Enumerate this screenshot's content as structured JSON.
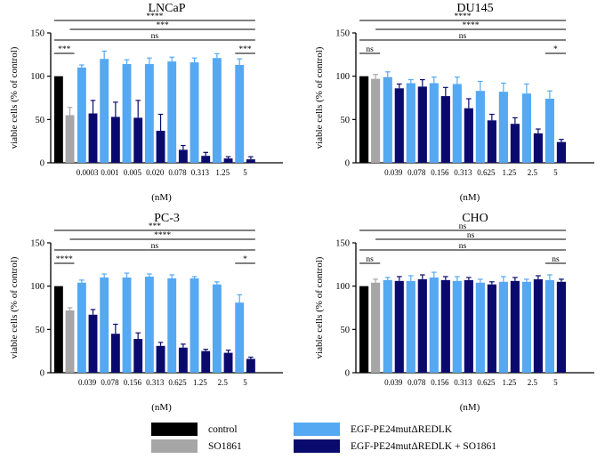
{
  "chart_data": [
    {
      "type": "bar",
      "title": "LNCaP",
      "ylabel": "viable cells (% of control)",
      "xlabel": "(nM)",
      "ylim": [
        0,
        150
      ],
      "yticks": [
        0,
        50,
        100,
        150
      ],
      "conc_labels": [
        "0.0003",
        "0.001",
        "0.005",
        "0.020",
        "0.078",
        "0.313",
        "1.25",
        "5"
      ],
      "control": {
        "value": 100,
        "err": 0
      },
      "so1861": {
        "value": 55,
        "err": 9
      },
      "egf": [
        {
          "value": 110,
          "err": 3
        },
        {
          "value": 120,
          "err": 9
        },
        {
          "value": 114,
          "err": 5
        },
        {
          "value": 114,
          "err": 7
        },
        {
          "value": 117,
          "err": 5
        },
        {
          "value": 116,
          "err": 5
        },
        {
          "value": 121,
          "err": 5
        },
        {
          "value": 113,
          "err": 7
        }
      ],
      "egf_so": [
        {
          "value": 57,
          "err": 15
        },
        {
          "value": 53,
          "err": 17
        },
        {
          "value": 52,
          "err": 20
        },
        {
          "value": 37,
          "err": 19
        },
        {
          "value": 15,
          "err": 5
        },
        {
          "value": 8,
          "err": 4
        },
        {
          "value": 5,
          "err": 2
        },
        {
          "value": 4,
          "err": 3
        }
      ],
      "sig_lines": [
        {
          "label": "****",
          "from": "control",
          "to": 7
        },
        {
          "label": "***",
          "from": "so1861",
          "to": 7
        },
        {
          "label": "ns",
          "from": "control",
          "to": 7
        },
        {
          "label": "***",
          "from": "control",
          "to": "so1861",
          "short": true
        },
        {
          "label": "***",
          "from": 7,
          "to": 7,
          "short": true
        }
      ]
    },
    {
      "type": "bar",
      "title": "DU145",
      "ylabel": "viable cells (% of control)",
      "xlabel": "(nM)",
      "ylim": [
        0,
        150
      ],
      "yticks": [
        0,
        50,
        100,
        150
      ],
      "conc_labels": [
        "0.039",
        "0.078",
        "0.156",
        "0.313",
        "0.625",
        "1.25",
        "2.5",
        "5"
      ],
      "control": {
        "value": 100,
        "err": 0
      },
      "so1861": {
        "value": 97,
        "err": 5
      },
      "egf": [
        {
          "value": 99,
          "err": 6
        },
        {
          "value": 92,
          "err": 4
        },
        {
          "value": 92,
          "err": 7
        },
        {
          "value": 91,
          "err": 8
        },
        {
          "value": 83,
          "err": 11
        },
        {
          "value": 82,
          "err": 10
        },
        {
          "value": 80,
          "err": 11
        },
        {
          "value": 74,
          "err": 9
        }
      ],
      "egf_so": [
        {
          "value": 86,
          "err": 5
        },
        {
          "value": 88,
          "err": 8
        },
        {
          "value": 77,
          "err": 10
        },
        {
          "value": 63,
          "err": 11
        },
        {
          "value": 49,
          "err": 7
        },
        {
          "value": 45,
          "err": 7
        },
        {
          "value": 34,
          "err": 5
        },
        {
          "value": 24,
          "err": 3
        }
      ],
      "sig_lines": [
        {
          "label": "****",
          "from": "control",
          "to": 7
        },
        {
          "label": "****",
          "from": "so1861",
          "to": 7
        },
        {
          "label": "ns",
          "from": "control",
          "to": 7
        },
        {
          "label": "ns",
          "from": "control",
          "to": "so1861",
          "short": true
        },
        {
          "label": "*",
          "from": 7,
          "to": 7,
          "short": true
        }
      ]
    },
    {
      "type": "bar",
      "title": "PC-3",
      "ylabel": "viable cells (% of control)",
      "xlabel": "(nM)",
      "ylim": [
        0,
        150
      ],
      "yticks": [
        0,
        50,
        100,
        150
      ],
      "conc_labels": [
        "0.039",
        "0.078",
        "0.156",
        "0.313",
        "0.625",
        "1.25",
        "2.5",
        "5"
      ],
      "control": {
        "value": 100,
        "err": 0
      },
      "so1861": {
        "value": 72,
        "err": 3
      },
      "egf": [
        {
          "value": 104,
          "err": 3
        },
        {
          "value": 110,
          "err": 4
        },
        {
          "value": 110,
          "err": 5
        },
        {
          "value": 111,
          "err": 3
        },
        {
          "value": 109,
          "err": 4
        },
        {
          "value": 109,
          "err": 2
        },
        {
          "value": 102,
          "err": 3
        },
        {
          "value": 81,
          "err": 9
        }
      ],
      "egf_so": [
        {
          "value": 67,
          "err": 6
        },
        {
          "value": 45,
          "err": 11
        },
        {
          "value": 39,
          "err": 7
        },
        {
          "value": 31,
          "err": 4
        },
        {
          "value": 29,
          "err": 4
        },
        {
          "value": 25,
          "err": 2
        },
        {
          "value": 23,
          "err": 3
        },
        {
          "value": 16,
          "err": 2
        }
      ],
      "sig_lines": [
        {
          "label": "***",
          "from": "control",
          "to": 7
        },
        {
          "label": "****",
          "from": "so1861",
          "to": 7
        },
        {
          "label": "ns",
          "from": "control",
          "to": 7
        },
        {
          "label": "****",
          "from": "control",
          "to": "so1861",
          "short": true
        },
        {
          "label": "*",
          "from": 7,
          "to": 7,
          "short": true
        }
      ]
    },
    {
      "type": "bar",
      "title": "CHO",
      "ylabel": "viable cells (% of control)",
      "xlabel": "(nM)",
      "ylim": [
        0,
        150
      ],
      "yticks": [
        0,
        50,
        100,
        150
      ],
      "conc_labels": [
        "0.039",
        "0.078",
        "0.156",
        "0.313",
        "0.625",
        "1.25",
        "2.5",
        "5"
      ],
      "control": {
        "value": 100,
        "err": 0
      },
      "so1861": {
        "value": 104,
        "err": 4
      },
      "egf": [
        {
          "value": 107,
          "err": 3
        },
        {
          "value": 106,
          "err": 6
        },
        {
          "value": 110,
          "err": 6
        },
        {
          "value": 106,
          "err": 5
        },
        {
          "value": 104,
          "err": 4
        },
        {
          "value": 105,
          "err": 6
        },
        {
          "value": 105,
          "err": 3
        },
        {
          "value": 107,
          "err": 6
        }
      ],
      "egf_so": [
        {
          "value": 106,
          "err": 5
        },
        {
          "value": 108,
          "err": 5
        },
        {
          "value": 107,
          "err": 4
        },
        {
          "value": 107,
          "err": 3
        },
        {
          "value": 102,
          "err": 3
        },
        {
          "value": 106,
          "err": 4
        },
        {
          "value": 108,
          "err": 4
        },
        {
          "value": 105,
          "err": 3
        }
      ],
      "sig_lines": [
        {
          "label": "ns",
          "from": "control",
          "to": 7
        },
        {
          "label": "ns",
          "from": "so1861",
          "to": 7
        },
        {
          "label": "ns",
          "from": "control",
          "to": 7
        },
        {
          "label": "ns",
          "from": "control",
          "to": "so1861",
          "short": true
        },
        {
          "label": "ns",
          "from": 7,
          "to": 7,
          "short": true
        }
      ]
    }
  ],
  "legend": [
    {
      "label": "control",
      "color": "#000000"
    },
    {
      "label": "SO1861",
      "color": "#a6a6a6"
    },
    {
      "label": "EGF-PE24mutΔREDLK",
      "color": "#55a8f2"
    },
    {
      "label": "EGF-PE24mutΔREDLK + SO1861",
      "color": "#0a0a6e"
    }
  ],
  "colors": {
    "control": "#000000",
    "so1861": "#a6a6a6",
    "egf": "#55a8f2",
    "egf_so": "#0a0a6e"
  }
}
